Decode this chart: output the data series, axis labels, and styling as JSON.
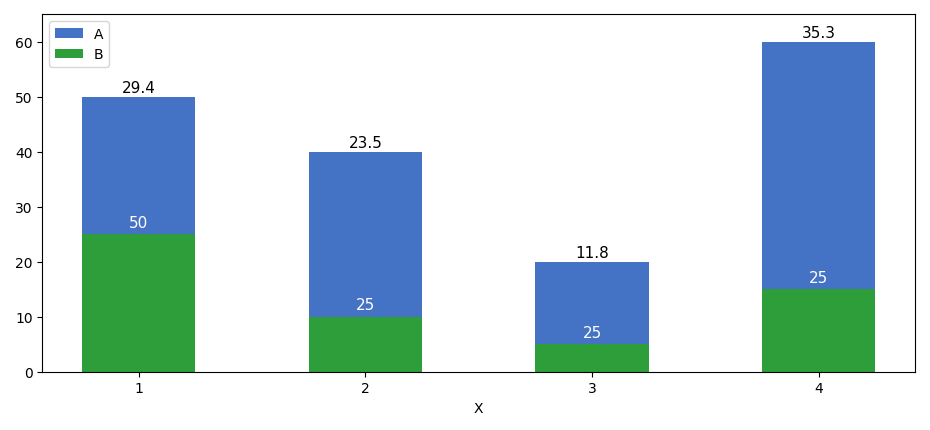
{
  "categories": [
    1,
    2,
    3,
    4
  ],
  "A_values": [
    25,
    30,
    15,
    45
  ],
  "B_values": [
    25,
    10,
    5,
    15
  ],
  "A_color": "#4472C4",
  "B_color": "#2E9E3A",
  "A_label": "A",
  "B_label": "B",
  "xlabel": "X",
  "ylim": [
    0,
    65
  ],
  "boundary_labels": [
    50,
    25,
    25,
    25
  ],
  "bar_labels_top": [
    "29.4",
    "23.5",
    "11.8",
    "35.3"
  ],
  "label_color": "white",
  "top_label_color": "black",
  "figsize": [
    9.3,
    4.31
  ],
  "dpi": 100,
  "bar_width": 0.5
}
